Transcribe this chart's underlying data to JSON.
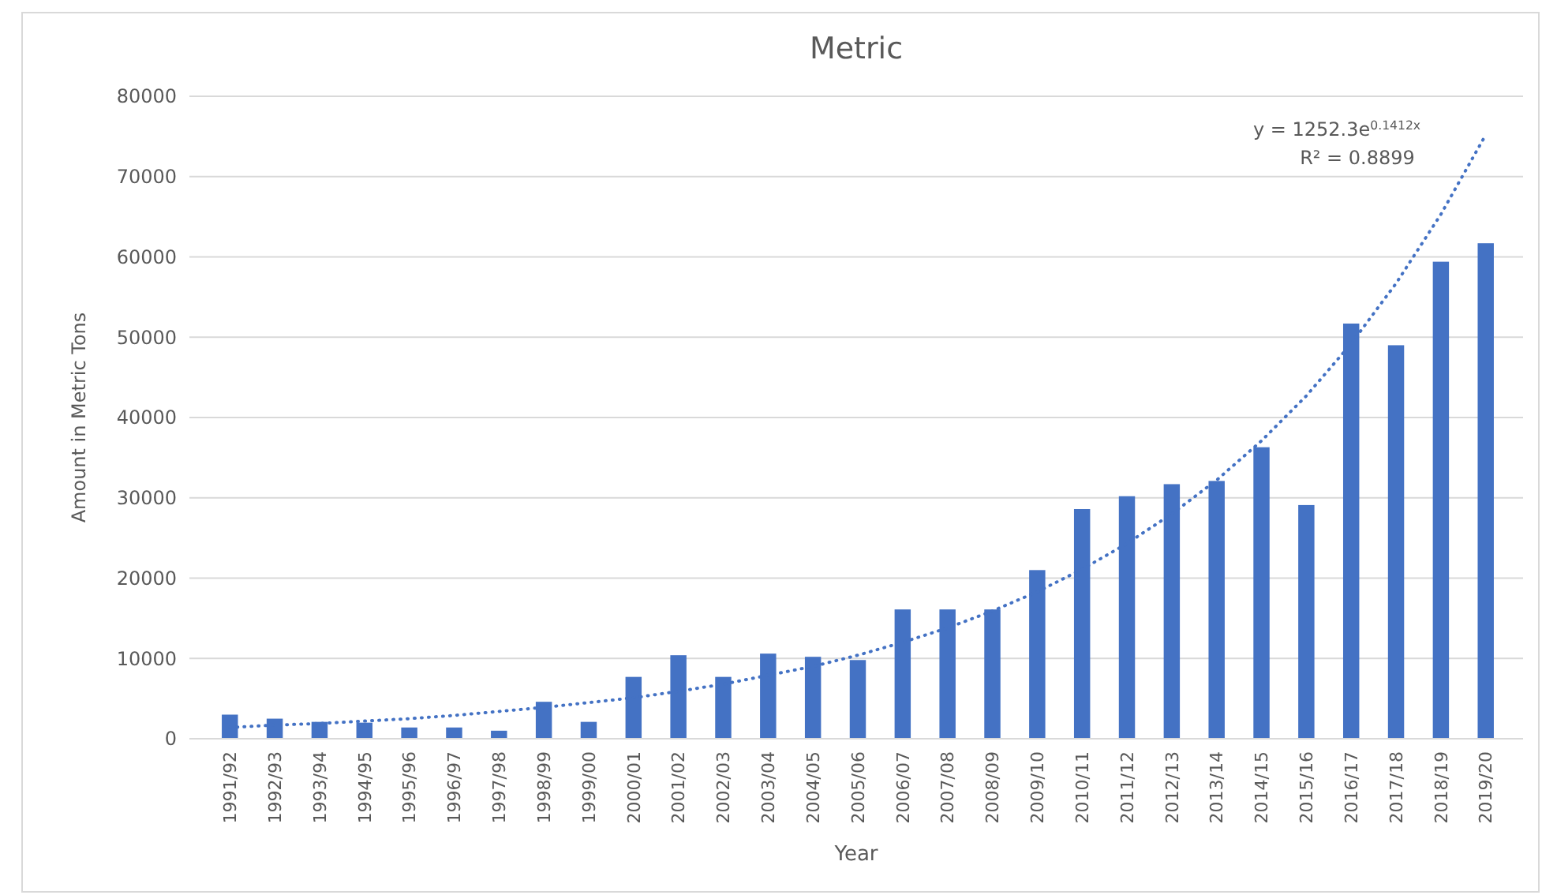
{
  "chart_data": {
    "type": "bar",
    "title": "Metric",
    "xlabel": "Year",
    "ylabel": "Amount in Metric Tons",
    "categories": [
      "1991/92",
      "1992/93",
      "1993/94",
      "1994/95",
      "1995/96",
      "1996/97",
      "1997/98",
      "1998/99",
      "1999/00",
      "2000/01",
      "2001/02",
      "2002/03",
      "2003/04",
      "2004/05",
      "2005/06",
      "2006/07",
      "2007/08",
      "2008/09",
      "2009/10",
      "2010/11",
      "2011/12",
      "2012/13",
      "2013/14",
      "2014/15",
      "2015/16",
      "2016/17",
      "2017/18",
      "2018/19",
      "2019/20"
    ],
    "series": [
      {
        "color": "#4472c4",
        "values": [
          3000,
          2500,
          2100,
          2000,
          1400,
          1400,
          1000,
          4600,
          2100,
          7700,
          10400,
          7700,
          10600,
          10200,
          9800,
          16100,
          16100,
          16100,
          21000,
          28600,
          30200,
          31700,
          32100,
          36300,
          29100,
          51700,
          49000,
          59400,
          61700
        ]
      },
      {
        "type": "line",
        "color": "#4472c4",
        "line_style": "dotted",
        "values": [
          1400,
          1700,
          1900,
          2200,
          2500,
          2900,
          3400,
          3900,
          4500,
          5100,
          5900,
          6800,
          7900,
          9000,
          10400,
          12000,
          13800,
          15900,
          18300,
          21100,
          24300,
          28000,
          32200,
          37100,
          42700,
          49200,
          56700,
          65300,
          75200
        ]
      }
    ],
    "ylim": [
      0,
      80000
    ],
    "yticks": [
      0,
      10000,
      20000,
      30000,
      40000,
      50000,
      60000,
      70000,
      80000
    ],
    "grid": "y",
    "annotations": [
      "y = 1252.3e$^{0.1412x}$",
      "R² = 0.8899"
    ]
  }
}
